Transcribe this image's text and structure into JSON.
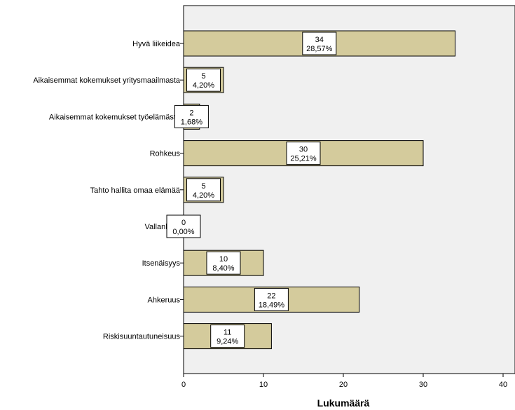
{
  "chart_data": {
    "type": "bar",
    "orientation": "horizontal",
    "categories": [
      "Hyvä liikeidea",
      "Aikaisemmat kokemukset yritysmaailmasta",
      "Aikaisemmat kokemukset työelämästä",
      "Rohkeus",
      "Tahto hallita omaa elämää",
      "Vallanhalu",
      "Itsenäisyys",
      "Ahkeruus",
      "Riskisuuntautuneisuus"
    ],
    "values": [
      34,
      5,
      2,
      30,
      5,
      0,
      10,
      22,
      11
    ],
    "percent_labels": [
      "28,57%",
      "4,20%",
      "1,68%",
      "25,21%",
      "4,20%",
      "0,00%",
      "8,40%",
      "18,49%",
      "9,24%"
    ],
    "xlabel": "Lukumäärä",
    "xlim": [
      0,
      40
    ],
    "xticks": [
      0,
      10,
      20,
      30,
      40
    ],
    "grid": false,
    "bar_color": "#d4cb9c",
    "plot_background": "#f0f0f0"
  }
}
